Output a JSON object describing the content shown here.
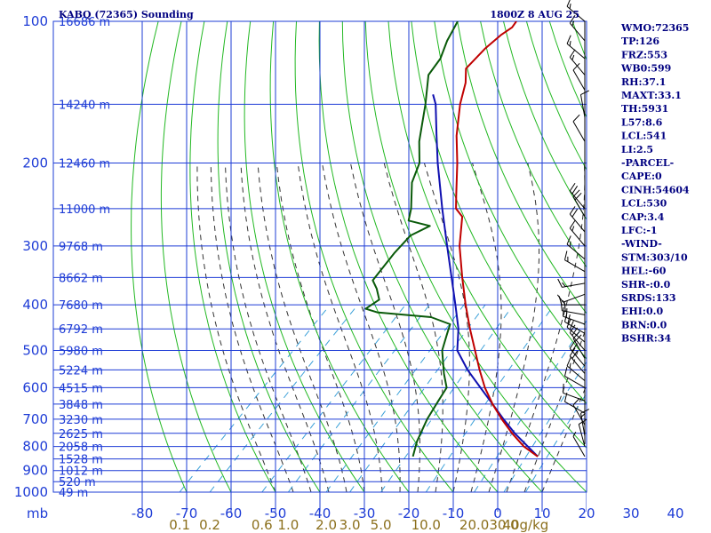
{
  "header": {
    "title_left": "KABQ (72365) Sounding",
    "title_right": "1800Z  8 AUG 25"
  },
  "params": [
    "WMO:72365",
    "TP:126",
    "FRZ:553",
    "WB0:599",
    "RH:37.1",
    "MAXT:33.1",
    "TH:5931",
    "L57:8.6",
    "LCL:541",
    "LI:2.5",
    "-PARCEL-",
    "CAPE:0",
    "CINH:54604",
    "LCL:530",
    "CAP:3.4",
    "LFC:-1",
    "-WIND-",
    "STM:303/10",
    "HEL:-60",
    "SHR-:0.0",
    "SRDS:133",
    "EHI:0.0",
    "BRN:0.0",
    "BSHR:34"
  ],
  "colors": {
    "isobar": "#1e3cd6",
    "isotherm": "#1e3cd6",
    "dry_adiabat": "#22b822",
    "moist_adiabat": "#333333",
    "mixing_ratio": "#3aa0d8",
    "temperature": "#c00000",
    "dewpoint": "#0a5a0a",
    "parcel": "#1010b0",
    "wind_barb": "#000000"
  },
  "chart_data": {
    "type": "skew-t",
    "title": "KABQ (72365) Sounding",
    "subtitle": "1800Z  8 AUG 25",
    "xlabel": "",
    "ylabel": "mb",
    "y_scale": "log",
    "ylim": [
      1000,
      100
    ],
    "xlim": [
      -80,
      40
    ],
    "pressure_ticks": [
      "100",
      "200",
      "300",
      "400",
      "500",
      "600",
      "700",
      "800",
      "900",
      "1000"
    ],
    "pressure_unit": "mb",
    "temperature_ticks": [
      "-80",
      "-70",
      "-60",
      "-50",
      "-40",
      "-30",
      "-20",
      "-10",
      "0",
      "10",
      "20",
      "30",
      "40"
    ],
    "height_labels": [
      {
        "p": 100,
        "text": "16686 m"
      },
      {
        "p": 150,
        "text": "14240 m"
      },
      {
        "p": 200,
        "text": "12460 m"
      },
      {
        "p": 250,
        "text": "11000 m"
      },
      {
        "p": 300,
        "text": "9768 m"
      },
      {
        "p": 350,
        "text": "8662 m"
      },
      {
        "p": 400,
        "text": "7680 m"
      },
      {
        "p": 450,
        "text": "6792 m"
      },
      {
        "p": 500,
        "text": "5980 m"
      },
      {
        "p": 550,
        "text": "5224 m"
      },
      {
        "p": 600,
        "text": "4515 m"
      },
      {
        "p": 650,
        "text": "3848 m"
      },
      {
        "p": 700,
        "text": "3230 m"
      },
      {
        "p": 750,
        "text": "2625 m"
      },
      {
        "p": 800,
        "text": "2058 m"
      },
      {
        "p": 850,
        "text": "1528 m"
      },
      {
        "p": 900,
        "text": "1012 m"
      },
      {
        "p": 950,
        "text": "520 m"
      },
      {
        "p": 1000,
        "text": "49 m"
      }
    ],
    "mixing_ratio_labels": [
      {
        "w": 0.1,
        "text": "0.1"
      },
      {
        "w": 0.2,
        "text": "0.2"
      },
      {
        "w": 0.6,
        "text": "0.6"
      },
      {
        "w": 1.0,
        "text": "1.0"
      },
      {
        "w": 2.0,
        "text": "2.0"
      },
      {
        "w": 3.0,
        "text": "3.0"
      },
      {
        "w": 5.0,
        "text": "5.0"
      },
      {
        "w": 10.0,
        "text": "10.0"
      },
      {
        "w": 20.0,
        "text": "20.0"
      },
      {
        "w": 30.0,
        "text": "30.0"
      },
      {
        "w": 40.0,
        "text": "40g/kg"
      }
    ],
    "series": [
      {
        "name": "Temperature",
        "points": [
          [
            840,
            31.0
          ],
          [
            800,
            25.6
          ],
          [
            750,
            20.0
          ],
          [
            700,
            14.5
          ],
          [
            650,
            9.0
          ],
          [
            600,
            3.6
          ],
          [
            550,
            -1.6
          ],
          [
            500,
            -7.0
          ],
          [
            450,
            -13.0
          ],
          [
            400,
            -19.4
          ],
          [
            350,
            -26.3
          ],
          [
            300,
            -34.0
          ],
          [
            260,
            -40.0
          ],
          [
            250,
            -43.2
          ],
          [
            235,
            -46.0
          ],
          [
            200,
            -53.2
          ],
          [
            175,
            -59.5
          ],
          [
            150,
            -65.8
          ],
          [
            135,
            -69.4
          ],
          [
            126,
            -72.5
          ],
          [
            114,
            -72.7
          ],
          [
            107,
            -72.2
          ],
          [
            103,
            -71.4
          ],
          [
            100,
            -71.8
          ]
        ]
      },
      {
        "name": "Dewpoint",
        "points": [
          [
            840,
            2.9
          ],
          [
            780,
            0.4
          ],
          [
            700,
            -2.3
          ],
          [
            640,
            -3.9
          ],
          [
            600,
            -5.0
          ],
          [
            560,
            -8.8
          ],
          [
            500,
            -14.4
          ],
          [
            460,
            -17.1
          ],
          [
            440,
            -18.5
          ],
          [
            425,
            -24.4
          ],
          [
            415,
            -37.6
          ],
          [
            408,
            -41.0
          ],
          [
            390,
            -40.0
          ],
          [
            370,
            -43.0
          ],
          [
            355,
            -45.8
          ],
          [
            310,
            -47.1
          ],
          [
            285,
            -47.4
          ],
          [
            272,
            -45.2
          ],
          [
            265,
            -51.2
          ],
          [
            250,
            -53.3
          ],
          [
            220,
            -59.0
          ],
          [
            200,
            -61.7
          ],
          [
            180,
            -66.6
          ],
          [
            150,
            -73.6
          ],
          [
            130,
            -79.5
          ],
          [
            120,
            -80.5
          ],
          [
            110,
            -83.0
          ],
          [
            100,
            -85.0
          ]
        ]
      },
      {
        "name": "Parcel",
        "points": [
          [
            840,
            31.0
          ],
          [
            750,
            20.6
          ],
          [
            700,
            14.9
          ],
          [
            650,
            9.0
          ],
          [
            600,
            2.6
          ],
          [
            550,
            -4.3
          ],
          [
            500,
            -11.0
          ],
          [
            450,
            -15.6
          ],
          [
            400,
            -21.7
          ],
          [
            350,
            -28.7
          ],
          [
            300,
            -36.8
          ],
          [
            250,
            -46.3
          ],
          [
            200,
            -57.6
          ],
          [
            175,
            -64.0
          ],
          [
            150,
            -71.3
          ],
          [
            143,
            -74.1
          ]
        ]
      }
    ],
    "wind_barbs": [
      {
        "p": 840,
        "dir": 330,
        "spd": 5
      },
      {
        "p": 800,
        "dir": 345,
        "spd": 10
      },
      {
        "p": 760,
        "dir": 350,
        "spd": 15
      },
      {
        "p": 720,
        "dir": 330,
        "spd": 10
      },
      {
        "p": 680,
        "dir": 300,
        "spd": 10
      },
      {
        "p": 640,
        "dir": 290,
        "spd": 10
      },
      {
        "p": 600,
        "dir": 300,
        "spd": 10
      },
      {
        "p": 580,
        "dir": 310,
        "spd": 15
      },
      {
        "p": 560,
        "dir": 320,
        "spd": 20
      },
      {
        "p": 540,
        "dir": 320,
        "spd": 20
      },
      {
        "p": 520,
        "dir": 330,
        "spd": 20
      },
      {
        "p": 500,
        "dir": 320,
        "spd": 20
      },
      {
        "p": 480,
        "dir": 310,
        "spd": 20
      },
      {
        "p": 460,
        "dir": 300,
        "spd": 20
      },
      {
        "p": 440,
        "dir": 290,
        "spd": 20
      },
      {
        "p": 420,
        "dir": 280,
        "spd": 20
      },
      {
        "p": 400,
        "dir": 270,
        "spd": 15
      },
      {
        "p": 380,
        "dir": 250,
        "spd": 10
      },
      {
        "p": 360,
        "dir": 260,
        "spd": 15
      },
      {
        "p": 340,
        "dir": 300,
        "spd": 15
      },
      {
        "p": 320,
        "dir": 310,
        "spd": 15
      },
      {
        "p": 300,
        "dir": 320,
        "spd": 15
      },
      {
        "p": 280,
        "dir": 320,
        "spd": 20
      },
      {
        "p": 260,
        "dir": 330,
        "spd": 20
      },
      {
        "p": 250,
        "dir": 320,
        "spd": 20
      },
      {
        "p": 180,
        "dir": 330,
        "spd": 10
      },
      {
        "p": 160,
        "dir": 350,
        "spd": 10
      },
      {
        "p": 140,
        "dir": 330,
        "spd": 10
      },
      {
        "p": 130,
        "dir": 320,
        "spd": 15
      },
      {
        "p": 120,
        "dir": 310,
        "spd": 15
      },
      {
        "p": 110,
        "dir": 320,
        "spd": 15
      },
      {
        "p": 100,
        "dir": 310,
        "spd": 15
      }
    ]
  }
}
